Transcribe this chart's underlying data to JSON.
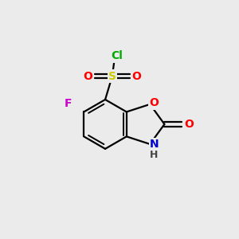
{
  "bg_color": "#ebebeb",
  "bond_color": "#000000",
  "atom_colors": {
    "O": "#ff0000",
    "N": "#0000cd",
    "F": "#cc00cc",
    "S": "#cccc00",
    "Cl": "#00aa00",
    "C": "#000000",
    "H": "#444444"
  },
  "font_size": 10,
  "bond_width": 1.6,
  "figsize": [
    3.0,
    3.0
  ],
  "dpi": 100,
  "xlim": [
    0,
    10
  ],
  "ylim": [
    0,
    10
  ]
}
